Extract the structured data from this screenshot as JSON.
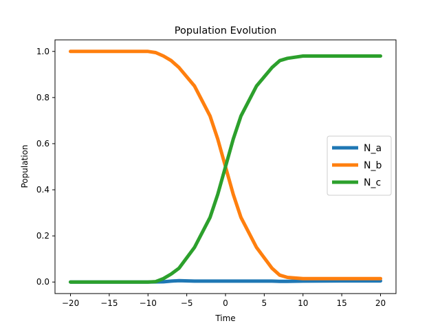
{
  "chart_data": {
    "type": "line",
    "title": "Population Evolution",
    "xlabel": "Time",
    "ylabel": "Population",
    "xlim": [
      -22,
      22
    ],
    "ylim": [
      -0.05,
      1.05
    ],
    "xticks": [
      -20,
      -15,
      -10,
      -5,
      0,
      5,
      10,
      15,
      20
    ],
    "yticks": [
      0.0,
      0.2,
      0.4,
      0.6,
      0.8,
      1.0
    ],
    "xtick_labels": [
      "−20",
      "−15",
      "−10",
      "−5",
      "0",
      "5",
      "10",
      "15",
      "20"
    ],
    "ytick_labels": [
      "0.0",
      "0.2",
      "0.4",
      "0.6",
      "0.8",
      "1.0"
    ],
    "grid": false,
    "legend_position": "center-right",
    "series": [
      {
        "name": "N_a",
        "color": "#1f77b4",
        "x": [
          -20,
          -10,
          -8,
          -7,
          -6,
          -4,
          -2,
          0,
          2,
          4,
          6,
          7,
          8,
          10,
          15,
          20
        ],
        "y": [
          0,
          0,
          0.001,
          0.004,
          0.006,
          0.004,
          0.004,
          0.004,
          0.004,
          0.004,
          0.004,
          0.003,
          0.003,
          0.004,
          0.005,
          0.005
        ]
      },
      {
        "name": "N_b",
        "color": "#ff7f0e",
        "x": [
          -20,
          -10,
          -9,
          -8,
          -7,
          -6,
          -4,
          -2,
          -1,
          0,
          1,
          2,
          4,
          6,
          7,
          8,
          10,
          15,
          20
        ],
        "y": [
          1.0,
          1.0,
          0.995,
          0.98,
          0.96,
          0.93,
          0.85,
          0.72,
          0.62,
          0.5,
          0.38,
          0.28,
          0.15,
          0.06,
          0.03,
          0.02,
          0.015,
          0.015,
          0.015
        ]
      },
      {
        "name": "N_c",
        "color": "#2ca02c",
        "x": [
          -20,
          -10,
          -9,
          -8,
          -7,
          -6,
          -4,
          -2,
          -1,
          0,
          1,
          2,
          4,
          6,
          7,
          8,
          10,
          15,
          20
        ],
        "y": [
          0.0,
          0.0,
          0.002,
          0.015,
          0.035,
          0.06,
          0.15,
          0.28,
          0.38,
          0.5,
          0.62,
          0.72,
          0.85,
          0.93,
          0.96,
          0.97,
          0.98,
          0.98,
          0.98
        ]
      }
    ]
  }
}
